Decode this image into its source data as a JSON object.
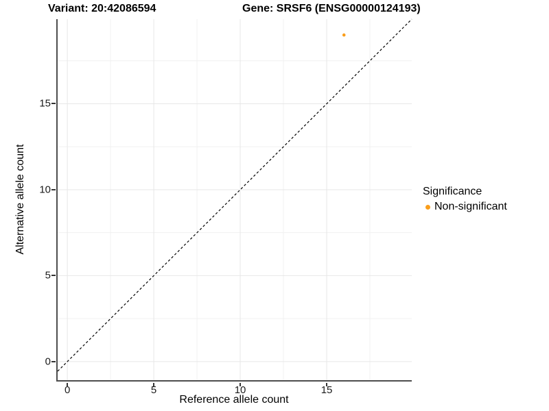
{
  "title": {
    "variant": "Variant: 20:42086594",
    "gene": "Gene: SRSF6 (ENSG00000124193)"
  },
  "axes": {
    "x_label": "Reference allele count",
    "y_label": "Alternative allele count"
  },
  "legend": {
    "title": "Significance",
    "items": [
      {
        "label": "Non-significant",
        "color": "#FA9E1B"
      }
    ]
  },
  "colors": {
    "point": "#FA9E1B",
    "axis_line": "#4d4d4d",
    "grid_major": "#e7e7e7",
    "grid_minor": "#f1f1f1",
    "abline": "#000000"
  },
  "chart_data": {
    "type": "scatter",
    "title": "Variant: 20:42086594  |  Gene: SRSF6 (ENSG00000124193)",
    "xlabel": "Reference allele count",
    "ylabel": "Alternative allele count",
    "points": [
      {
        "x": 16,
        "y": 19,
        "series": "Non-significant",
        "color": "#FA9E1B"
      }
    ],
    "abline": {
      "slope": 1,
      "intercept": 0,
      "style": "dashed"
    },
    "x_ticks": [
      0,
      5,
      10,
      15
    ],
    "y_ticks": [
      0,
      5,
      10,
      15
    ],
    "x_minor": [
      2.5,
      7.5,
      12.5,
      17.5
    ],
    "y_minor": [
      2.5,
      7.5,
      12.5,
      17.5
    ],
    "xlim": [
      -0.56,
      19.92
    ],
    "ylim": [
      -1.08,
      19.92
    ],
    "grid": true,
    "legend_position": "right",
    "legend_title": "Significance",
    "legend_entries": [
      "Non-significant"
    ]
  }
}
